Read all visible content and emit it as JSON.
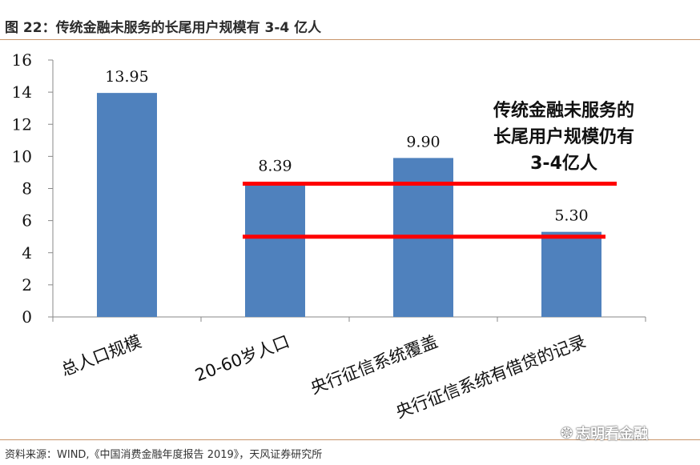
{
  "figure": {
    "title": "图 22：传统金融未服务的长尾用户规模有 3-4 亿人",
    "source": "资料来源：WIND,《中国消费金融年度报告 2019》，天风证券研究所",
    "watermark": "志明看金融",
    "watermark_icon": "wechat-icon"
  },
  "chart_data": {
    "type": "bar",
    "title": "",
    "xlabel": "",
    "ylabel": "",
    "categories": [
      "总人口规模",
      "20-60岁人口",
      "央行征信系统覆盖",
      "央行征信系统有借贷的记录"
    ],
    "values": [
      13.95,
      8.39,
      9.9,
      5.3
    ],
    "data_labels": [
      "13.95",
      "8.39",
      "9.90",
      "5.30"
    ],
    "ylim": [
      0,
      16
    ],
    "yticks": [
      0,
      2,
      4,
      6,
      8,
      10,
      12,
      14,
      16
    ],
    "bar_color": "#4f81bd",
    "reference_lines": [
      {
        "value": 8.3,
        "color": "#ff0000"
      },
      {
        "value": 5.0,
        "color": "#ff0000"
      }
    ],
    "annotation": {
      "lines": [
        "传统金融未服务的",
        "长尾用户规模仍有",
        "3-4亿人"
      ]
    },
    "grid": false,
    "legend": "none"
  }
}
